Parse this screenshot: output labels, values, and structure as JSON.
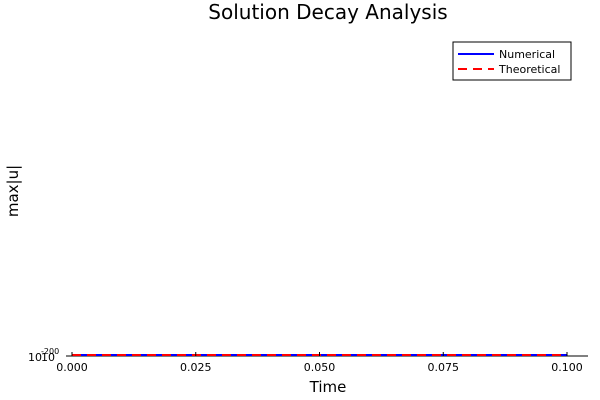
{
  "chart_data": {
    "type": "line",
    "title": "Solution Decay Analysis",
    "xlabel": "Time",
    "ylabel": "max|u|",
    "xlim": [
      0.0,
      0.1
    ],
    "x_ticks": [
      "0.000",
      "0.025",
      "0.050",
      "0.075",
      "0.100"
    ],
    "x_tick_values": [
      0.0,
      0.025,
      0.05,
      0.075,
      0.1
    ],
    "y_scale": "log",
    "y_ticks": [
      {
        "base": "10",
        "exponent": "-200"
      },
      {
        "base": "10",
        "exponent": ""
      }
    ],
    "grid": false,
    "legend_position": "top-right",
    "series": [
      {
        "name": "Numerical",
        "color": "#0000ff",
        "style": "solid",
        "x": [
          0.0,
          0.1
        ],
        "y": [
          1,
          1
        ]
      },
      {
        "name": "Theoretical",
        "color": "#ff0000",
        "style": "dashed",
        "x": [
          0.0,
          0.1
        ],
        "y": [
          1,
          1
        ]
      }
    ]
  }
}
